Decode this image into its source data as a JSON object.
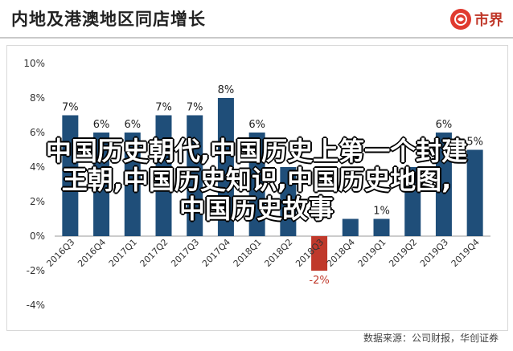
{
  "header": {
    "title": "内地及港澳地区同店增长",
    "brand_name": "市界"
  },
  "source": "数据来源：公司财报，华创证券",
  "overlay": {
    "line1": "中国历史朝代,中国历史上第一个封建",
    "line2": "王朝,中国历史知识,中国历史地图,",
    "line3": "中国历史故事"
  },
  "colors": {
    "positive_bar": "#1f4e79",
    "negative_bar": "#c0392b",
    "negative_label": "#c0392b",
    "axis_text": "#333333"
  },
  "chart_data": {
    "type": "bar",
    "categories": [
      "2016Q3",
      "2016Q4",
      "2017Q1",
      "2017Q2",
      "2017Q3",
      "2017Q4",
      "2018Q1",
      "2018Q2",
      "2018Q3",
      "2018Q4",
      "2019Q1",
      "2019Q2",
      "2019Q3",
      "2019Q4"
    ],
    "values": [
      7,
      6,
      6,
      7,
      7,
      8,
      6,
      4,
      -2,
      1,
      1,
      4,
      6,
      5
    ],
    "data_labels": [
      "7%",
      "6%",
      "6%",
      "7%",
      "7%",
      "8%",
      "6%",
      "",
      "-2%",
      "",
      "1%",
      "",
      "6%",
      "5%"
    ],
    "yticks": [
      "-4%",
      "-2%",
      "0%",
      "2%",
      "4%",
      "6%",
      "8%",
      "10%"
    ],
    "ylim": [
      -4,
      10
    ]
  }
}
